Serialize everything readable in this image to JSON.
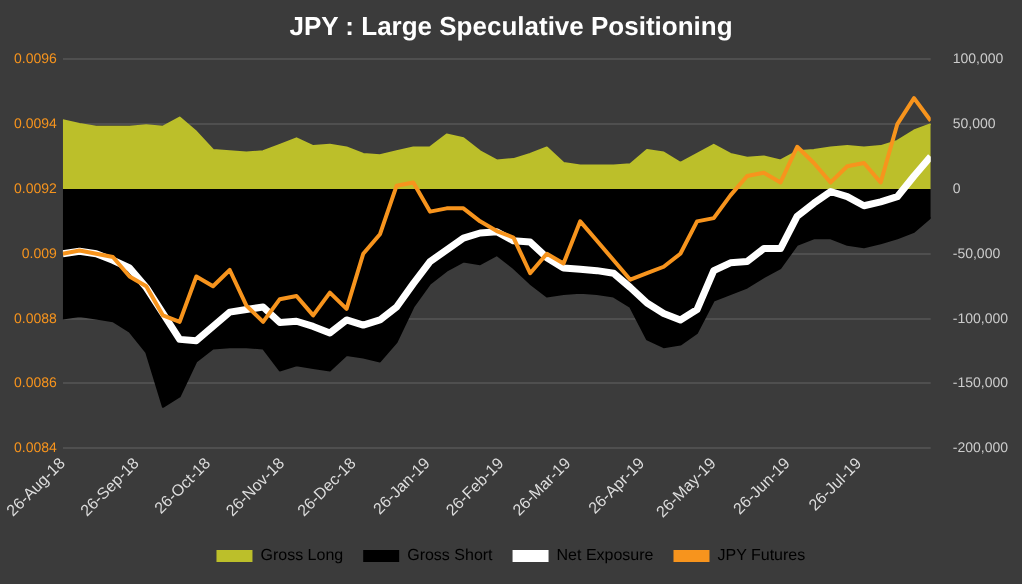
{
  "chart_data": {
    "type": "line",
    "title": "JPY : Large Speculative Positioning",
    "x": [
      "2018-08-26",
      "2018-09-02",
      "2018-09-09",
      "2018-09-16",
      "2018-09-23",
      "2018-09-30",
      "2018-10-07",
      "2018-10-14",
      "2018-10-21",
      "2018-10-28",
      "2018-11-04",
      "2018-11-11",
      "2018-11-18",
      "2018-11-25",
      "2018-12-02",
      "2018-12-09",
      "2018-12-16",
      "2018-12-23",
      "2018-12-30",
      "2019-01-06",
      "2019-01-13",
      "2019-01-20",
      "2019-01-27",
      "2019-02-03",
      "2019-02-10",
      "2019-02-17",
      "2019-02-24",
      "2019-03-03",
      "2019-03-10",
      "2019-03-17",
      "2019-03-24",
      "2019-03-31",
      "2019-04-07",
      "2019-04-14",
      "2019-04-21",
      "2019-04-28",
      "2019-05-05",
      "2019-05-12",
      "2019-05-19",
      "2019-05-26",
      "2019-06-02",
      "2019-06-09",
      "2019-06-16",
      "2019-06-23",
      "2019-06-30",
      "2019-07-07",
      "2019-07-14",
      "2019-07-21",
      "2019-07-28",
      "2019-08-04",
      "2019-08-11",
      "2019-08-18",
      "2019-08-25"
    ],
    "series": [
      {
        "name": "Gross Long",
        "type": "area",
        "axis": "y2",
        "color": "#bcbf2a",
        "values": [
          53000,
          50000,
          48000,
          48000,
          48000,
          49000,
          48000,
          55000,
          44000,
          30000,
          29000,
          28000,
          29000,
          34000,
          39000,
          33000,
          34000,
          32000,
          27000,
          26000,
          29000,
          32000,
          32000,
          42000,
          39000,
          29000,
          22000,
          23000,
          27000,
          32000,
          20000,
          18000,
          18000,
          18000,
          19000,
          30000,
          28000,
          20000,
          27000,
          34000,
          27000,
          24000,
          25000,
          22000,
          29000,
          30000,
          32000,
          33000,
          32000,
          33000,
          37000,
          45000,
          50000
        ]
      },
      {
        "name": "Gross Short",
        "type": "area",
        "axis": "y2",
        "color": "#000000",
        "values": [
          -100000,
          -98000,
          -100000,
          -102000,
          -110000,
          -126000,
          -168000,
          -160000,
          -133000,
          -123000,
          -122000,
          -122000,
          -123000,
          -140000,
          -136000,
          -138000,
          -140000,
          -128000,
          -130000,
          -133000,
          -118000,
          -91000,
          -73000,
          -63000,
          -56000,
          -58000,
          -51000,
          -61000,
          -73000,
          -83000,
          -81000,
          -80000,
          -81000,
          -83000,
          -91000,
          -116000,
          -122000,
          -120000,
          -111000,
          -86000,
          -81000,
          -76000,
          -68000,
          -61000,
          -43000,
          -38000,
          -38000,
          -43000,
          -45000,
          -42000,
          -38000,
          -33000,
          -22000
        ]
      },
      {
        "name": "Net Exposure",
        "type": "line",
        "axis": "y2",
        "color": "#ffffff",
        "values": [
          -50000,
          -48000,
          -50000,
          -55000,
          -61000,
          -76000,
          -96000,
          -116000,
          -117000,
          -106000,
          -95000,
          -93000,
          -91000,
          -103000,
          -102000,
          -106000,
          -111000,
          -101000,
          -105000,
          -101000,
          -91000,
          -73000,
          -56000,
          -47000,
          -38000,
          -34000,
          -33000,
          -40000,
          -41000,
          -53000,
          -61000,
          -62000,
          -63000,
          -65000,
          -76000,
          -88000,
          -96000,
          -101000,
          -93000,
          -63000,
          -57000,
          -56000,
          -46000,
          -46000,
          -21000,
          -11000,
          -2000,
          -6000,
          -13000,
          -10000,
          -6000,
          10000,
          25000
        ]
      },
      {
        "name": "JPY Futures",
        "type": "line",
        "axis": "y",
        "color": "#f7941d",
        "values": [
          0.009,
          0.00901,
          0.009,
          0.00899,
          0.00893,
          0.0089,
          0.00881,
          0.00879,
          0.00893,
          0.0089,
          0.00895,
          0.00884,
          0.00879,
          0.00886,
          0.00887,
          0.00881,
          0.00888,
          0.00883,
          0.009,
          0.00906,
          0.00921,
          0.00922,
          0.00913,
          0.00914,
          0.00914,
          0.0091,
          0.00907,
          0.00905,
          0.00894,
          0.009,
          0.00897,
          0.0091,
          0.00904,
          0.00898,
          0.00892,
          0.00894,
          0.00896,
          0.009,
          0.0091,
          0.00911,
          0.00918,
          0.00924,
          0.00925,
          0.00922,
          0.00933,
          0.00928,
          0.00922,
          0.00927,
          0.00928,
          0.00922,
          0.0094,
          0.00948,
          0.00941
        ]
      }
    ],
    "xlim": [
      "2018-08-26",
      "2019-08-25"
    ],
    "xticks": [
      {
        "value": "2018-08-26",
        "label": "26-Aug-18"
      },
      {
        "value": "2018-09-26",
        "label": "26-Sep-18"
      },
      {
        "value": "2018-10-26",
        "label": "26-Oct-18"
      },
      {
        "value": "2018-11-26",
        "label": "26-Nov-18"
      },
      {
        "value": "2018-12-26",
        "label": "26-Dec-18"
      },
      {
        "value": "2019-01-26",
        "label": "26-Jan-19"
      },
      {
        "value": "2019-02-26",
        "label": "26-Feb-19"
      },
      {
        "value": "2019-03-26",
        "label": "26-Mar-19"
      },
      {
        "value": "2019-04-26",
        "label": "26-Apr-19"
      },
      {
        "value": "2019-05-26",
        "label": "26-May-19"
      },
      {
        "value": "2019-06-26",
        "label": "26-Jun-19"
      },
      {
        "value": "2019-07-26",
        "label": "26-Jul-19"
      }
    ],
    "ylim": [
      0.0084,
      0.0096
    ],
    "yticks": [
      0.0084,
      0.0086,
      0.0088,
      0.009,
      0.0092,
      0.0094,
      0.0096
    ],
    "y2lim": [
      -200000,
      100000
    ],
    "y2ticks": [
      {
        "value": -200000,
        "label": "-200,000"
      },
      {
        "value": -150000,
        "label": "-150,000"
      },
      {
        "value": -100000,
        "label": "-100,000"
      },
      {
        "value": -50000,
        "label": "-50,000"
      },
      {
        "value": 0,
        "label": "0"
      },
      {
        "value": 50000,
        "label": "50,000"
      },
      {
        "value": 100000,
        "label": "100,000"
      }
    ],
    "grid": "y",
    "legend": "bottom",
    "marker": "none",
    "line_style": "solid"
  }
}
